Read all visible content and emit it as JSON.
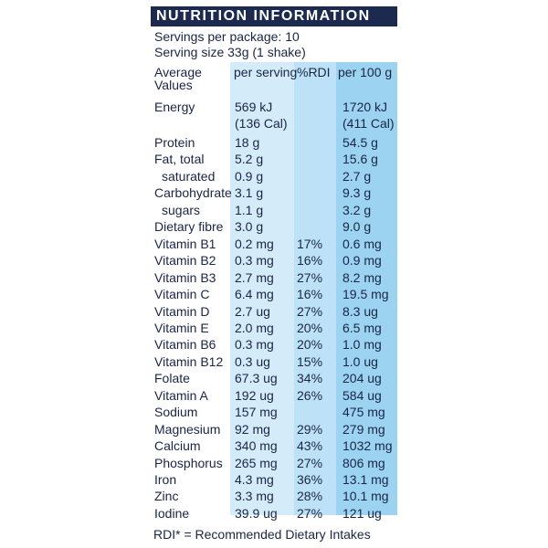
{
  "title": "NUTRITION INFORMATION",
  "servings_per_package": "Servings per package: 10",
  "serving_size": "Serving size 33g (1 shake)",
  "headers": {
    "label_line1": "Average",
    "label_line2": "Values",
    "per_serving": "per serving",
    "rdi": "%RDI",
    "per_100g": "per 100 g"
  },
  "energy": {
    "label": "Energy",
    "serving_kj": "569 kJ",
    "serving_cal": "(136 Cal)",
    "per100_kj": "1720 kJ",
    "per100_cal": "(411 Cal)"
  },
  "rows": [
    {
      "label": "Protein",
      "serving": "18 g",
      "rdi": "",
      "per100": "54.5 g"
    },
    {
      "label": "Fat, total",
      "serving": "5.2 g",
      "rdi": "",
      "per100": "15.6 g"
    },
    {
      "label": "saturated",
      "serving": "0.9 g",
      "rdi": "",
      "per100": "2.7 g"
    },
    {
      "label": "Carbohydrate",
      "serving": "3.1 g",
      "rdi": "",
      "per100": "9.3 g"
    },
    {
      "label": "sugars",
      "serving": "1.1 g",
      "rdi": "",
      "per100": "3.2 g"
    },
    {
      "label": "Dietary fibre",
      "serving": "3.0 g",
      "rdi": "",
      "per100": "9.0 g"
    },
    {
      "label": "Vitamin B1",
      "serving": "0.2 mg",
      "rdi": "17%",
      "per100": "0.6 mg"
    },
    {
      "label": "Vitamin B2",
      "serving": "0.3 mg",
      "rdi": "16%",
      "per100": "0.9 mg"
    },
    {
      "label": "Vitamin B3",
      "serving": "2.7 mg",
      "rdi": "27%",
      "per100": "8.2 mg"
    },
    {
      "label": "Vitamin C",
      "serving": "6.4 mg",
      "rdi": "16%",
      "per100": "19.5 mg"
    },
    {
      "label": "Vitamin D",
      "serving": "2.7 ug",
      "rdi": "27%",
      "per100": "8.3 ug"
    },
    {
      "label": "Vitamin E",
      "serving": "2.0 mg",
      "rdi": "20%",
      "per100": "6.5 mg"
    },
    {
      "label": "Vitamin B6",
      "serving": "0.3 mg",
      "rdi": "20%",
      "per100": "1.0 mg"
    },
    {
      "label": "Vitamin B12",
      "serving": "0.3 ug",
      "rdi": "15%",
      "per100": "1.0 ug"
    },
    {
      "label": "Folate",
      "serving": "67.3 ug",
      "rdi": "34%",
      "per100": "204 ug"
    },
    {
      "label": "Vitamin A",
      "serving": "192 ug",
      "rdi": "26%",
      "per100": "584 ug"
    },
    {
      "label": "Sodium",
      "serving": "157 mg",
      "rdi": "",
      "per100": "475 mg"
    },
    {
      "label": "Magnesium",
      "serving": "92 mg",
      "rdi": "29%",
      "per100": "279 mg"
    },
    {
      "label": "Calcium",
      "serving": "340 mg",
      "rdi": "43%",
      "per100": "1032 mg"
    },
    {
      "label": "Phosphorus",
      "serving": "265 mg",
      "rdi": "27%",
      "per100": "806 mg"
    },
    {
      "label": "Iron",
      "serving": "4.3 mg",
      "rdi": "36%",
      "per100": "13.1 mg"
    },
    {
      "label": "Zinc",
      "serving": "3.3 mg",
      "rdi": "28%",
      "per100": "10.1 mg"
    },
    {
      "label": "Iodine",
      "serving": "39.9 ug",
      "rdi": "27%",
      "per100": "121 ug"
    }
  ],
  "footnote": "RDI* = Recommended Dietary Intakes",
  "colors": {
    "title_bg": "#1b2a4e",
    "per_serving_bg": "#d4ecf9",
    "rdi_bg": "#bde2f7",
    "per100_bg": "#9bd3f1"
  }
}
